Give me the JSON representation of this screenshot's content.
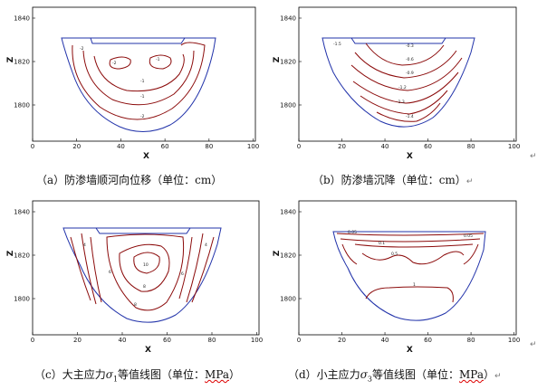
{
  "panels": [
    {
      "id": "a",
      "caption": {
        "prefix": "（a）防渗墙顺河向位移（单位：",
        "unit": "cm",
        "suffix": "）"
      },
      "xlabel": "X",
      "ylabel": "Z",
      "xticks": [
        "0",
        "20",
        "40",
        "60",
        "80",
        "100"
      ],
      "yticks": [
        "1840",
        "1820",
        "1800"
      ],
      "contour_labels": [
        "-2",
        "-1",
        "-1",
        "-1",
        "-2",
        "-2"
      ]
    },
    {
      "id": "b",
      "caption": {
        "prefix": "（b）防渗墙沉降（单位：",
        "unit": "cm",
        "suffix": "）"
      },
      "xlabel": "X",
      "ylabel": "Z",
      "xticks": [
        "0",
        "20",
        "40",
        "60",
        "80",
        "100"
      ],
      "yticks": [
        "1840",
        "1820",
        "1800"
      ],
      "contour_labels": [
        "-1.5",
        "-1.4",
        "-1.3",
        "-1.2",
        "-0.9",
        "-0.6",
        "-0.3"
      ]
    },
    {
      "id": "c",
      "caption": {
        "prefix": "（c）大主应力",
        "sigma": "σ",
        "sub": "1",
        "mid": "等值线图（单位：",
        "unit": "MPa",
        "suffix": "）"
      },
      "xlabel": "X",
      "ylabel": "Z",
      "xticks": [
        "0",
        "20",
        "40",
        "60",
        "80",
        "100"
      ],
      "yticks": [
        "1840",
        "1820",
        "1800"
      ],
      "contour_labels": [
        "10",
        "8",
        "6",
        "4",
        "4",
        "6",
        "8"
      ]
    },
    {
      "id": "d",
      "caption": {
        "prefix": "（d）小主应力",
        "sigma": "σ",
        "sub": "3",
        "mid": "等值线图（单位：",
        "unit": "MPa",
        "suffix": "）"
      },
      "xlabel": "X",
      "ylabel": "Z",
      "xticks": [
        "0",
        "20",
        "40",
        "60",
        "80",
        "100"
      ],
      "yticks": [
        "1840",
        "1820",
        "1800"
      ],
      "contour_labels": [
        "0.05",
        "0.1",
        "0.5",
        "1",
        "0.05"
      ]
    }
  ],
  "return_mark": "↵"
}
